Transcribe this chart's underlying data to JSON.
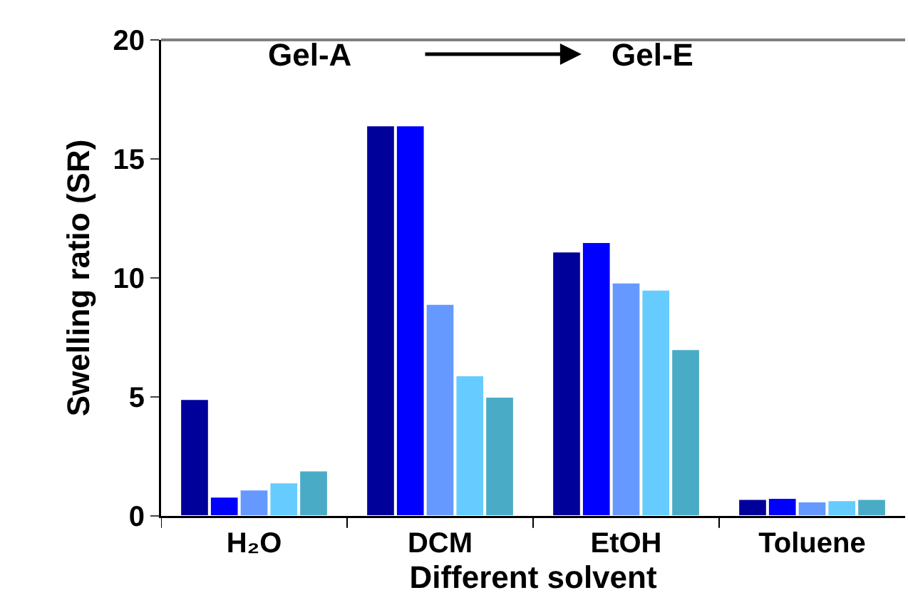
{
  "chart_data": {
    "type": "bar",
    "xlabel": "Different solvent",
    "ylabel": "Swelling ratio (SR)",
    "categories": [
      "H₂O",
      "DCM",
      "EtOH",
      "Toluene"
    ],
    "series": [
      {
        "color": "#00009a",
        "values": [
          4.9,
          16.4,
          11.1,
          0.7
        ]
      },
      {
        "color": "#0000ff",
        "values": [
          0.8,
          16.4,
          11.5,
          0.75
        ]
      },
      {
        "color": "#6699ff",
        "values": [
          1.1,
          8.9,
          9.8,
          0.6
        ]
      },
      {
        "color": "#66ccff",
        "values": [
          1.4,
          5.9,
          9.5,
          0.65
        ]
      },
      {
        "color": "#4aabc6",
        "values": [
          1.9,
          5.0,
          7.0,
          0.7
        ]
      }
    ],
    "ylim": [
      0,
      20
    ],
    "yticks": [
      0,
      5,
      10,
      15,
      20
    ],
    "grid": false,
    "annotations": [
      "Gel-A",
      "Gel-E"
    ]
  }
}
